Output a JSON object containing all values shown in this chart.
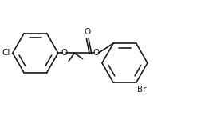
{
  "bg_color": "#ffffff",
  "line_color": "#1a1a1a",
  "line_width": 1.2,
  "font_size": 7.5,
  "figsize": [
    2.47,
    1.45
  ],
  "dpi": 100,
  "ring_r": 0.32,
  "xlim": [
    -0.95,
    1.75
  ],
  "ylim": [
    -0.62,
    0.52
  ]
}
